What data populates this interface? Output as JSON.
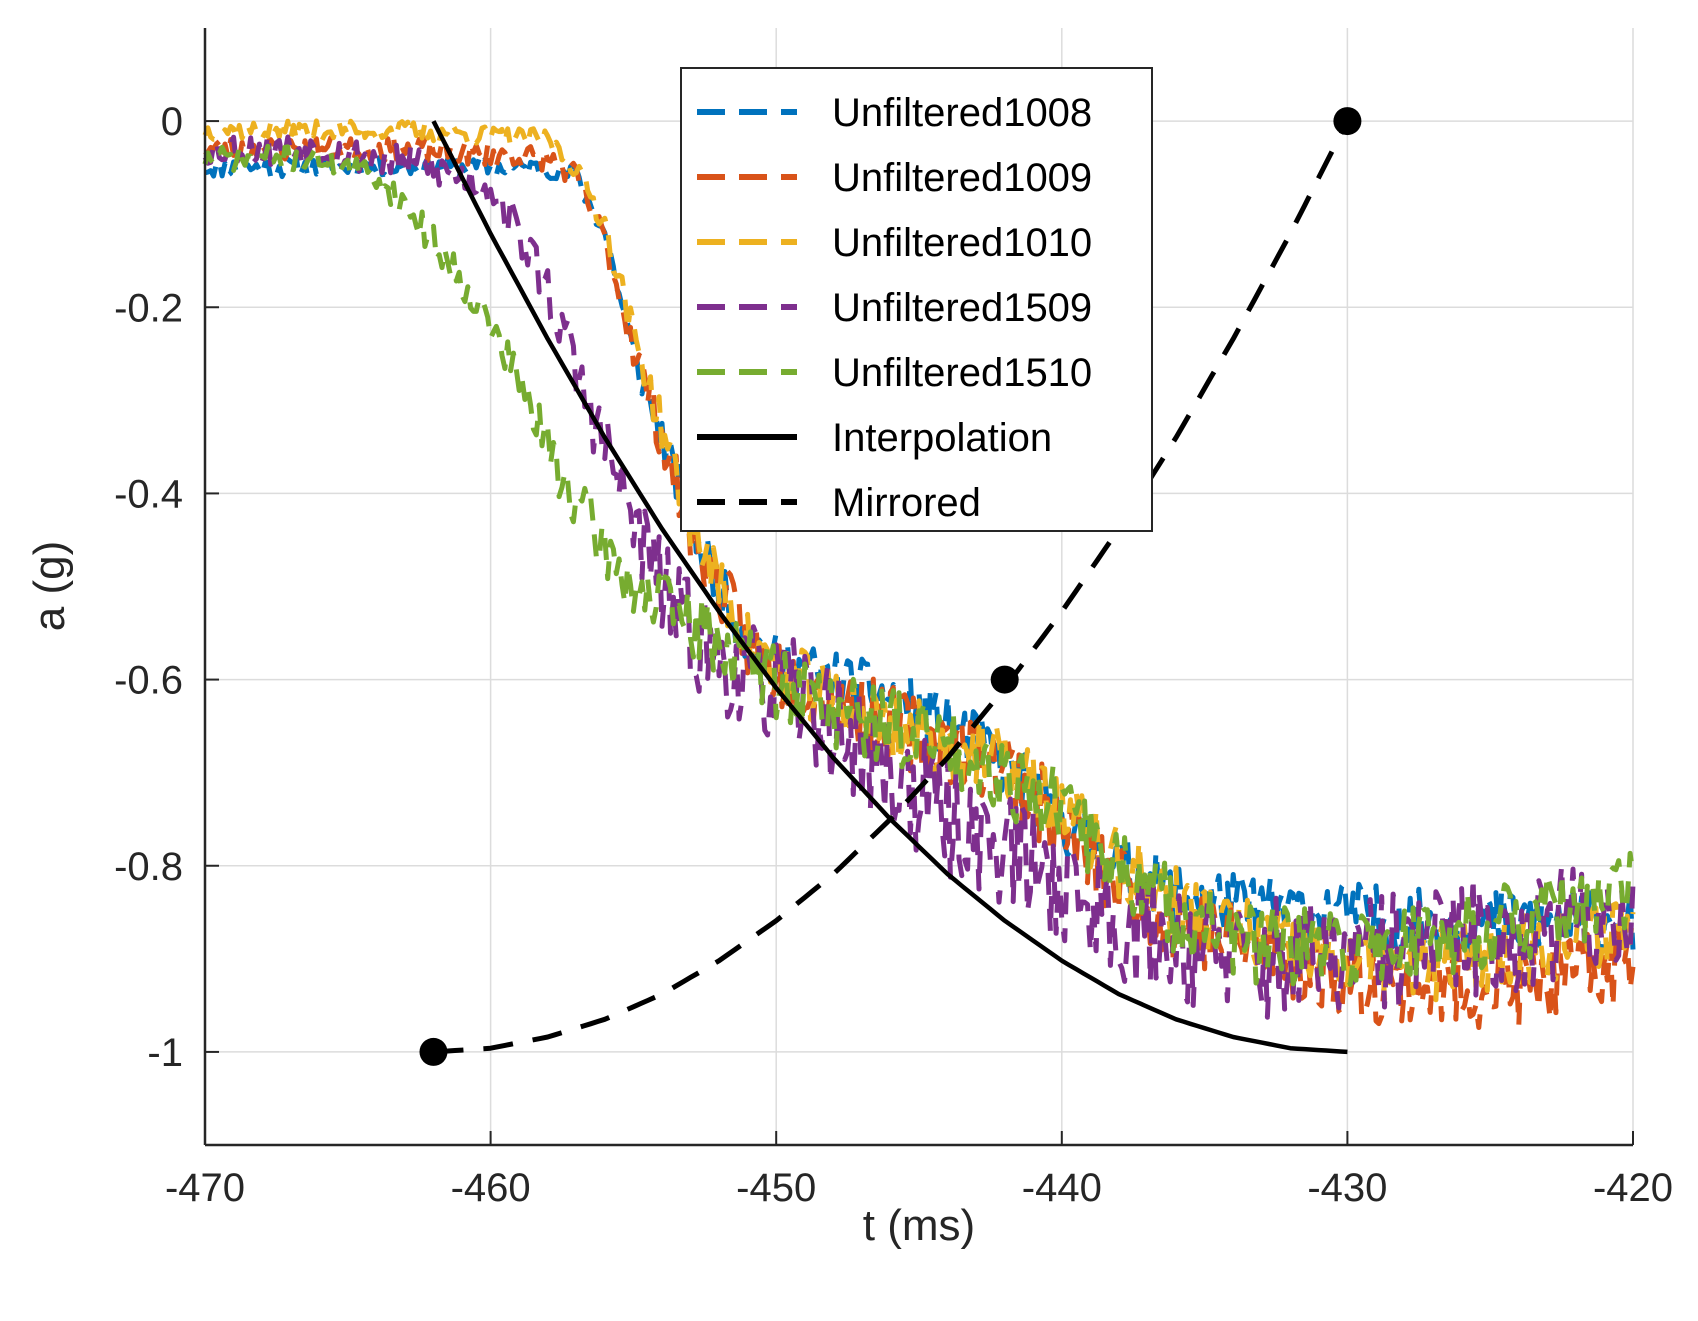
{
  "chart_data": {
    "type": "line",
    "title": "",
    "xlabel": "t (ms)",
    "ylabel": "a (g)",
    "xlim": [
      -470,
      -420
    ],
    "ylim": [
      -1.1,
      0.1
    ],
    "xticks": [
      -470,
      -460,
      -450,
      -440,
      -430,
      -420
    ],
    "yticks": [
      0,
      -0.2,
      -0.4,
      -0.6,
      -0.8,
      -1
    ],
    "xtick_labels": [
      "-470",
      "-460",
      "-450",
      "-440",
      "-430",
      "-420"
    ],
    "ytick_labels": [
      "0",
      "-0.2",
      "-0.4",
      "-0.6",
      "-0.8",
      "-1"
    ],
    "grid": true,
    "legend_position": "top-center",
    "series": [
      {
        "name": "Unfiltered1008",
        "color": "#0072BD",
        "style": "dashed",
        "noise": 0.035,
        "seed": 11,
        "x": [
          -470,
          -463,
          -458,
          -457,
          -456,
          -455,
          -454,
          -453,
          -452,
          -451,
          -450,
          -448,
          -446,
          -444,
          -442,
          -440,
          -438,
          -436,
          -434,
          -432,
          -430,
          -428,
          -426,
          -424,
          -422,
          -420
        ],
        "values": [
          -0.05,
          -0.05,
          -0.05,
          -0.06,
          -0.12,
          -0.25,
          -0.34,
          -0.43,
          -0.5,
          -0.56,
          -0.58,
          -0.6,
          -0.62,
          -0.65,
          -0.69,
          -0.75,
          -0.8,
          -0.83,
          -0.84,
          -0.85,
          -0.85,
          -0.86,
          -0.86,
          -0.86,
          -0.86,
          -0.86
        ]
      },
      {
        "name": "Unfiltered1009",
        "color": "#D95319",
        "style": "dashed",
        "noise": 0.045,
        "seed": 23,
        "x": [
          -470,
          -463,
          -458,
          -457,
          -456,
          -455,
          -454,
          -453,
          -452,
          -451,
          -450,
          -448,
          -446,
          -444,
          -442,
          -440,
          -438,
          -436,
          -434,
          -432,
          -430,
          -428,
          -426,
          -424,
          -422,
          -420
        ],
        "values": [
          -0.03,
          -0.03,
          -0.04,
          -0.06,
          -0.13,
          -0.24,
          -0.34,
          -0.44,
          -0.5,
          -0.56,
          -0.59,
          -0.62,
          -0.65,
          -0.67,
          -0.69,
          -0.76,
          -0.82,
          -0.86,
          -0.88,
          -0.9,
          -0.92,
          -0.93,
          -0.93,
          -0.93,
          -0.92,
          -0.9
        ]
      },
      {
        "name": "Unfiltered1010",
        "color": "#EDB120",
        "style": "dashed",
        "noise": 0.04,
        "seed": 37,
        "x": [
          -470,
          -463,
          -458,
          -457,
          -456,
          -455,
          -454,
          -453,
          -452,
          -451,
          -450,
          -448,
          -446,
          -444,
          -442,
          -440,
          -438,
          -436,
          -434,
          -432,
          -430,
          -428,
          -426,
          -424,
          -422,
          -420
        ],
        "values": [
          -0.01,
          -0.01,
          -0.02,
          -0.05,
          -0.11,
          -0.23,
          -0.33,
          -0.43,
          -0.5,
          -0.56,
          -0.59,
          -0.62,
          -0.65,
          -0.67,
          -0.69,
          -0.74,
          -0.8,
          -0.84,
          -0.87,
          -0.89,
          -0.9,
          -0.91,
          -0.9,
          -0.89,
          -0.88,
          -0.86
        ]
      },
      {
        "name": "Unfiltered1509",
        "color": "#7E2F8E",
        "style": "dashed",
        "noise": 0.065,
        "seed": 53,
        "x": [
          -470,
          -466,
          -464,
          -462,
          -460,
          -459,
          -458,
          -457,
          -456,
          -455,
          -454,
          -453,
          -452,
          -451,
          -450,
          -449,
          -448,
          -446,
          -444,
          -442,
          -440,
          -438,
          -436,
          -434,
          -432,
          -430,
          -428,
          -426,
          -424,
          -422,
          -420
        ],
        "values": [
          -0.03,
          -0.03,
          -0.04,
          -0.05,
          -0.07,
          -0.12,
          -0.18,
          -0.27,
          -0.35,
          -0.43,
          -0.5,
          -0.55,
          -0.58,
          -0.6,
          -0.61,
          -0.62,
          -0.65,
          -0.7,
          -0.75,
          -0.78,
          -0.82,
          -0.86,
          -0.88,
          -0.9,
          -0.9,
          -0.9,
          -0.89,
          -0.88,
          -0.87,
          -0.86,
          -0.85
        ]
      },
      {
        "name": "Unfiltered1510",
        "color": "#77AC30",
        "style": "dashed",
        "noise": 0.045,
        "seed": 71,
        "x": [
          -470,
          -466,
          -464,
          -463,
          -462,
          -461,
          -460,
          -459,
          -458,
          -457,
          -456,
          -455,
          -454,
          -452,
          -450,
          -448,
          -446,
          -444,
          -442,
          -440,
          -438,
          -436,
          -434,
          -432,
          -430,
          -428,
          -426,
          -424,
          -422,
          -420
        ],
        "values": [
          -0.04,
          -0.04,
          -0.06,
          -0.09,
          -0.13,
          -0.17,
          -0.22,
          -0.28,
          -0.35,
          -0.41,
          -0.46,
          -0.5,
          -0.52,
          -0.56,
          -0.6,
          -0.63,
          -0.65,
          -0.67,
          -0.7,
          -0.74,
          -0.8,
          -0.85,
          -0.88,
          -0.89,
          -0.89,
          -0.88,
          -0.87,
          -0.86,
          -0.85,
          -0.83
        ]
      },
      {
        "name": "Interpolation",
        "color": "#000000",
        "style": "solid",
        "x": [
          -462,
          -460,
          -458,
          -456,
          -454,
          -452,
          -450,
          -448,
          -446,
          -444,
          -442,
          -440,
          -438,
          -436,
          -434,
          -432,
          -430
        ],
        "values": [
          0,
          -0.121,
          -0.234,
          -0.34,
          -0.438,
          -0.527,
          -0.609,
          -0.684,
          -0.75,
          -0.809,
          -0.859,
          -0.902,
          -0.938,
          -0.965,
          -0.984,
          -0.996,
          -1.0
        ]
      },
      {
        "name": "Mirrored",
        "color": "#000000",
        "style": "dashed",
        "x": [
          -462,
          -460,
          -458,
          -456,
          -454,
          -452,
          -450,
          -448,
          -446,
          -444,
          -442,
          -440,
          -438,
          -436,
          -434,
          -432,
          -430
        ],
        "values": [
          -1.0,
          -0.996,
          -0.984,
          -0.965,
          -0.938,
          -0.902,
          -0.859,
          -0.809,
          -0.75,
          -0.684,
          -0.609,
          -0.527,
          -0.438,
          -0.34,
          -0.234,
          -0.121,
          0
        ]
      }
    ],
    "markers": [
      {
        "x": -462,
        "y": -1
      },
      {
        "x": -442,
        "y": -0.6
      },
      {
        "x": -430,
        "y": 0
      }
    ]
  }
}
